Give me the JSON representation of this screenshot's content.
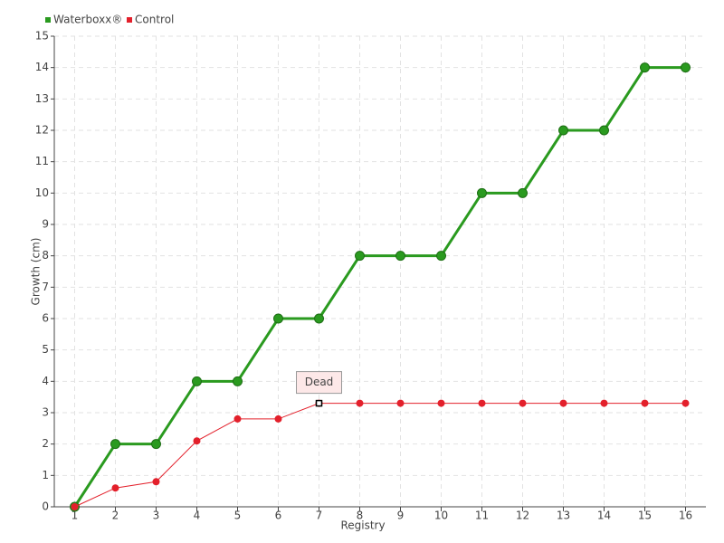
{
  "chart_data": {
    "type": "line",
    "x_label": "Registry",
    "y_label": "Growth (cm)",
    "categories": [
      "1",
      "2",
      "3",
      "4",
      "5",
      "6",
      "7",
      "8",
      "9",
      "10",
      "11",
      "12",
      "13",
      "14",
      "15",
      "16"
    ],
    "series": [
      {
        "name": "Waterboxx®",
        "color": "#2a9a1f",
        "values": [
          0,
          2,
          2,
          4,
          4,
          6,
          6,
          8,
          8,
          8,
          10,
          10,
          12,
          12,
          14,
          14
        ]
      },
      {
        "name": "Control",
        "color": "#e3202b",
        "values": [
          0,
          0.6,
          0.8,
          2.1,
          2.8,
          2.8,
          3.3,
          3.3,
          3.3,
          3.3,
          3.3,
          3.3,
          3.3,
          3.3,
          3.3,
          3.3
        ]
      }
    ],
    "annotations": [
      {
        "text": "Dead",
        "x": "7",
        "y": 3.3
      }
    ],
    "ylim": [
      0,
      15
    ],
    "yticks": [
      0,
      1,
      2,
      3,
      4,
      5,
      6,
      7,
      8,
      9,
      10,
      11,
      12,
      13,
      14,
      15
    ],
    "grid": true,
    "legend": "top-left"
  }
}
